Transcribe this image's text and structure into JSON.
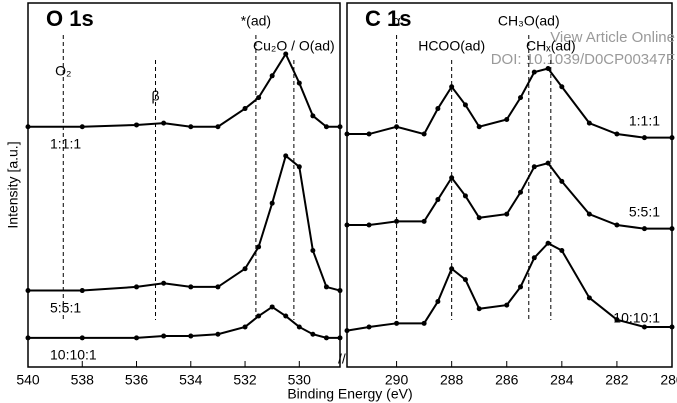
{
  "watermark": [
    "View Article Online",
    "DOI: 10.1039/D0CP00347F"
  ],
  "chart_data": [
    {
      "type": "line",
      "title": "O 1s",
      "ylabel": "Intensity [a.u.]",
      "xlabel": "Binding Energy (eV)",
      "xlim": [
        540,
        528.5
      ],
      "xticks": [
        540,
        538,
        536,
        534,
        532,
        530
      ],
      "ylim": [
        0,
        100
      ],
      "x": [
        540,
        538,
        536,
        535,
        534,
        533,
        532,
        531.5,
        531,
        530.5,
        530,
        529.5,
        529,
        528.5
      ],
      "series": [
        {
          "name": "1:1:1",
          "color": "#000000",
          "values": [
            66,
            66,
            66.5,
            67,
            66,
            66,
            71,
            74,
            80,
            86,
            78,
            69,
            66,
            66
          ]
        },
        {
          "name": "5:5:1",
          "color": "#000000",
          "values": [
            21,
            21,
            22,
            23,
            22,
            22,
            27,
            33,
            45,
            58,
            55,
            32,
            22,
            21
          ]
        },
        {
          "name": "10:10:1",
          "color": "#000000",
          "values": [
            8,
            8,
            8,
            8.5,
            8.5,
            9,
            11,
            14,
            16.5,
            14,
            11,
            9,
            8,
            8
          ]
        }
      ],
      "markers": [
        {
          "label": "O₂",
          "x": 538.7
        },
        {
          "label": "β",
          "x": 535.3
        },
        {
          "label": "*(ad)",
          "x": 531.6
        },
        {
          "label": "Cu₂O / O(ad)",
          "x": 530.2
        }
      ]
    },
    {
      "type": "line",
      "title": "C 1s",
      "xlim": [
        291.8,
        280
      ],
      "xticks": [
        290,
        288,
        286,
        284,
        282,
        280
      ],
      "ylim": [
        0,
        100
      ],
      "x": [
        291.8,
        291,
        290,
        289,
        288.5,
        288,
        287.5,
        287,
        286,
        285.5,
        285,
        284.5,
        284,
        283,
        282,
        281,
        280
      ],
      "series": [
        {
          "name": "1:1:1",
          "color": "#000000",
          "values": [
            64,
            64,
            66,
            64,
            71,
            77,
            72,
            66,
            68,
            74,
            81,
            82,
            77,
            67,
            64,
            63,
            63
          ]
        },
        {
          "name": "5:5:1",
          "color": "#000000",
          "values": [
            39,
            39,
            40,
            40,
            46,
            52,
            47,
            41,
            42,
            48,
            55,
            56,
            51,
            42,
            39,
            38,
            38
          ]
        },
        {
          "name": "10:10:1",
          "color": "#000000",
          "values": [
            10,
            11,
            12,
            12,
            18,
            27,
            24,
            16,
            17,
            22,
            30,
            34,
            32,
            19,
            13,
            11,
            11
          ]
        }
      ],
      "markers": [
        {
          "label": "α",
          "x": 290
        },
        {
          "label": "HCOO(ad)",
          "x": 288
        },
        {
          "label": "CH₃O(ad)",
          "x": 285.2
        },
        {
          "label": "CHₓ(ad)",
          "x": 284.4
        }
      ]
    }
  ]
}
